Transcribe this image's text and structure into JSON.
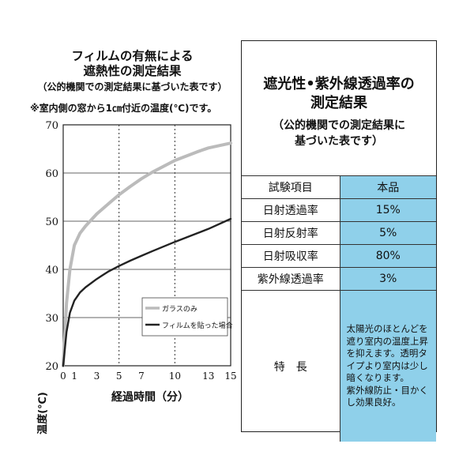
{
  "left": {
    "title_line1": "フィルムの有無による",
    "title_line2": "遮熱性の測定結果",
    "title_line3": "（公的機関での測定結果に基づいた表です）",
    "note": "※室内側の窓から1㎝付近の温度(℃)です。"
  },
  "chart_data": {
    "type": "line",
    "title": "",
    "xlabel": "経過時間（分）",
    "ylabel": "温度(℃)",
    "xlim": [
      0,
      15
    ],
    "ylim": [
      20,
      70
    ],
    "x_ticks": [
      0,
      1,
      3,
      5,
      7,
      10,
      13,
      15
    ],
    "y_ticks": [
      20,
      30,
      40,
      50,
      60,
      70
    ],
    "vertical_gridlines": [
      5,
      10
    ],
    "horizontal_gridlines": [
      30,
      40,
      50,
      60
    ],
    "legend_position": "bottom-right",
    "series": [
      {
        "name": "ガラスのみ",
        "color": "#bbbbbb",
        "x": [
          0,
          0.3,
          0.6,
          1,
          1.5,
          2,
          3,
          4,
          5,
          6,
          7,
          8,
          10,
          12,
          13,
          15
        ],
        "y": [
          20,
          33,
          40,
          45,
          47.5,
          49,
          51.5,
          53.5,
          55.5,
          57.2,
          58.8,
          60.2,
          62.6,
          64.4,
          65.2,
          66.2
        ]
      },
      {
        "name": "フィルムを貼った場合",
        "color": "#222222",
        "x": [
          0,
          0.3,
          0.6,
          1,
          1.5,
          2,
          3,
          4,
          5,
          6,
          7,
          8,
          10,
          12,
          13,
          15
        ],
        "y": [
          20,
          27,
          31,
          33.5,
          35.2,
          36.3,
          38,
          39.5,
          40.7,
          41.8,
          42.8,
          43.8,
          45.7,
          47.5,
          48.4,
          50.5
        ]
      }
    ]
  },
  "panel": {
    "title_line1": "遮光性•紫外線透過率の",
    "title_line2": "測定結果",
    "subtitle_line1": "（公的機関での測定結果に",
    "subtitle_line2": "基づいた表です）",
    "header_item": "試験項目",
    "header_value": "本品",
    "rows": [
      {
        "label": "日射透過率",
        "value": "15%"
      },
      {
        "label": "日射反射率",
        "value": "5%"
      },
      {
        "label": "日射吸収率",
        "value": "80%"
      },
      {
        "label": "紫外線透過率",
        "value": "3%"
      }
    ],
    "feature_label": "特　長",
    "feature_lines": [
      "太陽光のほとんどを",
      "遮り室内の温度上昇",
      "を抑えます。透明タ",
      "イプより室内は少し",
      "暗くなります。",
      "紫外線防止・目かく",
      "し効果良好。"
    ],
    "colors": {
      "value_bg": "#8fd0ea"
    }
  }
}
